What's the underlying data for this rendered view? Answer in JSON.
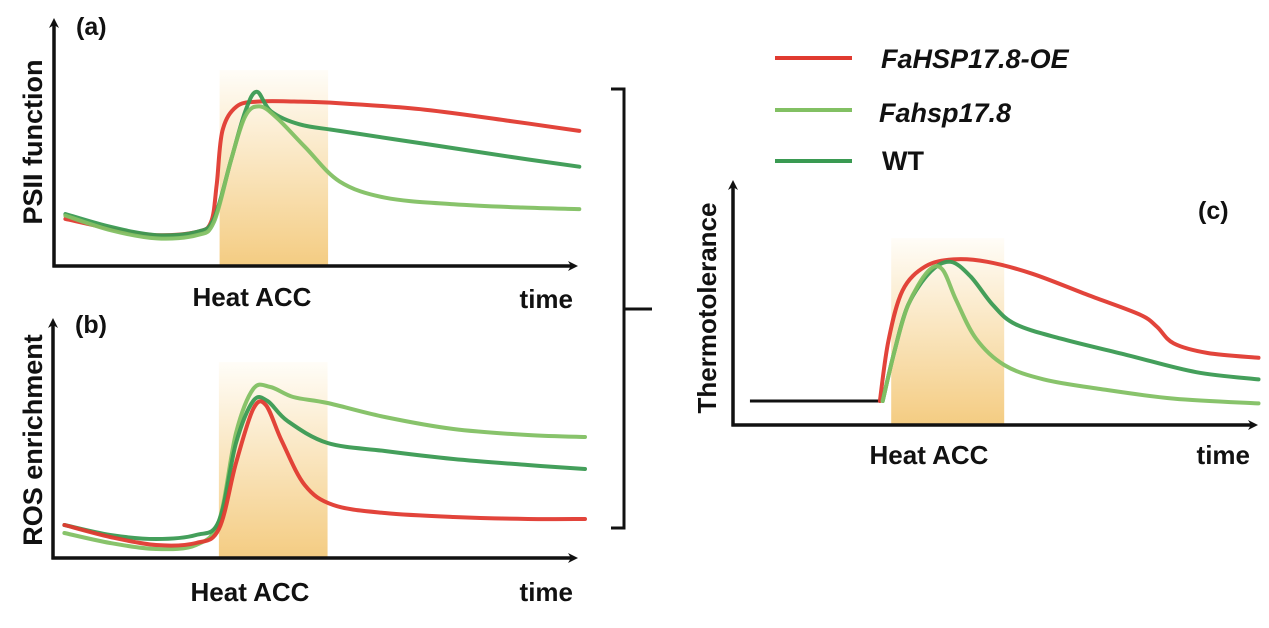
{
  "figure": {
    "legend": [
      {
        "key": "oe",
        "label": "FaHSP17.8-OE",
        "color": "#e03a30",
        "italic": true
      },
      {
        "key": "ko",
        "label": "Fahsp17.8",
        "color": "#82c063",
        "italic": true
      },
      {
        "key": "wt",
        "label": "WT",
        "color": "#3a9a52",
        "italic": false
      }
    ],
    "shade_colors": {
      "top": "#fffdf8",
      "bottom": "#f4cc82"
    },
    "axis_color": "#111111"
  },
  "chart_data": [
    {
      "id": "a",
      "type": "line",
      "panel_label": "(a)",
      "ylabel": "PSII function",
      "xlabel": "time",
      "band_label": "Heat ACC",
      "xlim": [
        0,
        10
      ],
      "ylim": [
        0,
        10
      ],
      "band": [
        2.9,
        4.8
      ],
      "series": [
        {
          "key": "oe",
          "name": "FaHSP17.8-OE",
          "x": [
            0.2,
            1.0,
            1.8,
            2.5,
            2.75,
            2.85,
            2.95,
            3.2,
            3.6,
            4.2,
            5.0,
            6.5,
            8.0,
            9.2
          ],
          "y": [
            2.4,
            1.8,
            1.4,
            1.6,
            2.2,
            4.5,
            7.8,
            9.3,
            9.6,
            9.6,
            9.5,
            9.1,
            8.4,
            7.8
          ]
        },
        {
          "key": "wt",
          "name": "WT",
          "x": [
            0.2,
            1.0,
            1.8,
            2.5,
            2.8,
            3.1,
            3.35,
            3.55,
            3.8,
            4.3,
            5.0,
            6.5,
            8.0,
            9.2
          ],
          "y": [
            2.7,
            1.9,
            1.4,
            1.6,
            2.4,
            6.0,
            9.0,
            10.2,
            9.0,
            8.2,
            7.8,
            7.0,
            6.2,
            5.6
          ]
        },
        {
          "key": "ko",
          "name": "Fahsp17.8",
          "x": [
            0.2,
            1.0,
            1.8,
            2.5,
            2.8,
            3.1,
            3.35,
            3.6,
            3.9,
            4.4,
            5.0,
            5.8,
            7.0,
            8.2,
            9.2
          ],
          "y": [
            2.6,
            1.7,
            1.2,
            1.4,
            2.2,
            6.0,
            8.7,
            9.3,
            8.6,
            6.8,
            4.7,
            3.7,
            3.3,
            3.1,
            3.0
          ]
        }
      ]
    },
    {
      "id": "b",
      "type": "line",
      "panel_label": "(b)",
      "ylabel": "ROS enrichment",
      "xlabel": "time",
      "band_label": "Heat ACC",
      "xlim": [
        0,
        10
      ],
      "ylim": [
        0,
        10
      ],
      "band": [
        2.9,
        4.8
      ],
      "series": [
        {
          "key": "ko",
          "name": "Fahsp17.8",
          "x": [
            0.2,
            1.0,
            1.8,
            2.5,
            2.9,
            3.2,
            3.5,
            3.8,
            4.2,
            4.8,
            5.8,
            7.0,
            8.3,
            9.3
          ],
          "y": [
            1.0,
            0.5,
            0.2,
            0.4,
            1.6,
            6.0,
            8.2,
            8.3,
            7.8,
            7.5,
            6.8,
            6.2,
            5.9,
            5.8
          ]
        },
        {
          "key": "wt",
          "name": "WT",
          "x": [
            0.2,
            1.0,
            1.8,
            2.5,
            2.9,
            3.2,
            3.5,
            3.75,
            4.1,
            4.8,
            5.8,
            7.0,
            8.3,
            9.3
          ],
          "y": [
            1.4,
            0.9,
            0.7,
            0.9,
            1.6,
            5.5,
            7.6,
            7.6,
            6.6,
            5.5,
            5.1,
            4.7,
            4.4,
            4.2
          ]
        },
        {
          "key": "oe",
          "name": "FaHSP17.8-OE",
          "x": [
            0.2,
            1.0,
            1.8,
            2.5,
            2.9,
            3.2,
            3.5,
            3.72,
            4.0,
            4.4,
            4.9,
            5.8,
            7.0,
            8.3,
            9.3
          ],
          "y": [
            1.4,
            0.8,
            0.4,
            0.5,
            1.2,
            4.5,
            7.2,
            7.4,
            5.6,
            3.4,
            2.4,
            2.0,
            1.8,
            1.7,
            1.7
          ]
        }
      ]
    },
    {
      "id": "c",
      "type": "line",
      "panel_label": "(c)",
      "ylabel": "Thermotolerance",
      "xlabel": "time",
      "band_label": "Heat ACC",
      "xlim": [
        0,
        10
      ],
      "ylim": [
        0,
        10
      ],
      "band": [
        2.8,
        4.8
      ],
      "baseline": {
        "x": [
          0.3,
          2.6
        ],
        "y": 1.0
      },
      "series": [
        {
          "key": "oe",
          "name": "FaHSP17.8-OE",
          "x": [
            2.6,
            2.75,
            3.0,
            3.4,
            3.9,
            4.5,
            5.3,
            6.3,
            7.2,
            7.5,
            7.8,
            8.4,
            9.3
          ],
          "y": [
            1.0,
            3.5,
            5.6,
            6.6,
            6.9,
            6.8,
            6.3,
            5.4,
            4.6,
            4.1,
            3.4,
            3.0,
            2.8
          ]
        },
        {
          "key": "wt",
          "name": "WT",
          "x": [
            2.65,
            2.85,
            3.1,
            3.5,
            3.85,
            4.2,
            4.6,
            5.0,
            5.8,
            7.0,
            8.2,
            9.3
          ],
          "y": [
            1.0,
            3.0,
            5.0,
            6.4,
            6.8,
            6.2,
            5.0,
            4.2,
            3.6,
            2.9,
            2.2,
            1.9
          ]
        },
        {
          "key": "ko",
          "name": "Fahsp17.8",
          "x": [
            2.65,
            2.85,
            3.1,
            3.45,
            3.7,
            3.95,
            4.3,
            4.8,
            5.5,
            6.5,
            7.8,
            9.3
          ],
          "y": [
            1.0,
            3.0,
            5.0,
            6.4,
            6.5,
            5.2,
            3.6,
            2.5,
            1.9,
            1.5,
            1.1,
            0.9
          ]
        }
      ]
    }
  ]
}
